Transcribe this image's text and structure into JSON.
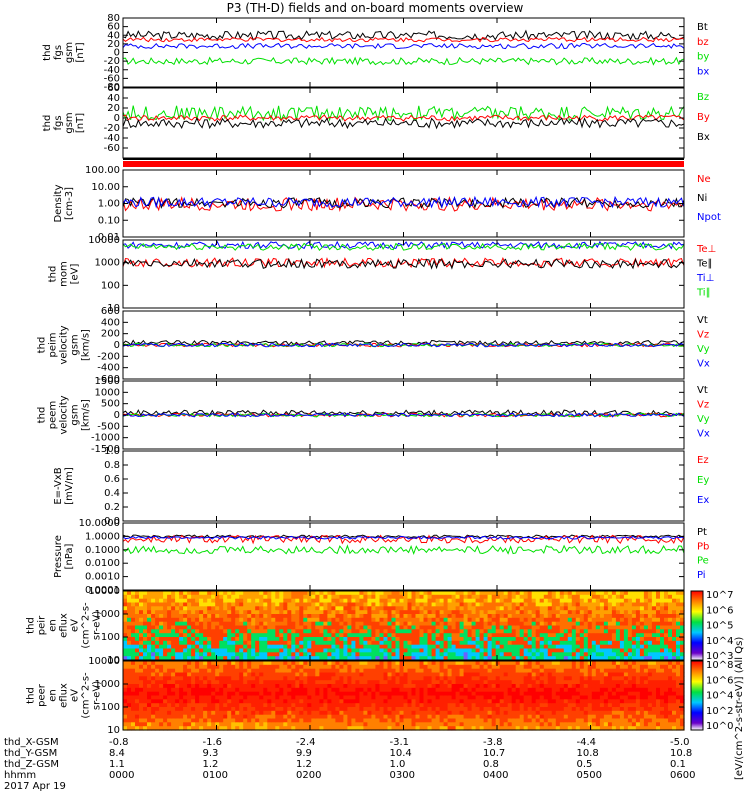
{
  "title": "P3 (TH-D) fields and on-board moments overview",
  "ephemeris": {
    "rows": [
      {
        "label": "thd_X-GSM",
        "values": [
          "-0.8",
          "-1.6",
          "-2.4",
          "-3.1",
          "-3.8",
          "-4.4",
          "-5.0"
        ]
      },
      {
        "label": "thd_Y-GSM",
        "values": [
          "8.4",
          "9.3",
          "9.9",
          "10.4",
          "10.7",
          "10.8",
          "10.8"
        ]
      },
      {
        "label": "thd_Z-GSM",
        "values": [
          "1.1",
          "1.2",
          "1.2",
          "1.0",
          "0.8",
          "0.5",
          "0.1"
        ]
      },
      {
        "label": "hhmm",
        "values": [
          "0000",
          "0100",
          "0200",
          "0300",
          "0400",
          "0500",
          "0600"
        ]
      }
    ],
    "date": "2017 Apr 19"
  },
  "colors": {
    "black": "#000000",
    "red": "#ff0000",
    "green": "#00e000",
    "blue": "#0000ff"
  },
  "chart_data": [
    {
      "type": "line",
      "id": "fgs_gsm",
      "ylabel": [
        "thd",
        "fgs",
        "gsm",
        "[nT]"
      ],
      "ylim": [
        -80,
        80
      ],
      "yticks": [
        -80,
        -60,
        -40,
        -20,
        0,
        20,
        40,
        60,
        80
      ],
      "series": [
        {
          "name": "Bt",
          "color": "#000000",
          "level": 40,
          "noise": 10
        },
        {
          "name": "bz",
          "color": "#ff0000",
          "level": 30,
          "noise": 5
        },
        {
          "name": "by",
          "color": "#00e000",
          "level": -20,
          "noise": 8
        },
        {
          "name": "bx",
          "color": "#0000ff",
          "level": 15,
          "noise": 6
        }
      ]
    },
    {
      "type": "line",
      "id": "fgs_gsm_2",
      "ylabel": [
        "thd",
        "fgs",
        "gsm",
        "[nT]"
      ],
      "ylim": [
        -80,
        60
      ],
      "yticks": [
        -60,
        -40,
        -20,
        0,
        20,
        40,
        60
      ],
      "series": [
        {
          "name": "Bz",
          "color": "#00e000",
          "level": 10,
          "noise": 15
        },
        {
          "name": "By",
          "color": "#ff0000",
          "level": 0,
          "noise": 6
        },
        {
          "name": "Bx",
          "color": "#000000",
          "level": -10,
          "noise": 10
        }
      ]
    },
    {
      "type": "line",
      "id": "density",
      "log": true,
      "ylabel": [
        "Density",
        "[cm-3]"
      ],
      "ylim": [
        0.01,
        100
      ],
      "yticks": [
        0.01,
        0.1,
        1,
        10,
        100
      ],
      "yticklabels": [
        "0.01",
        "0.10",
        "1.00",
        "10.00",
        "100.00"
      ],
      "series": [
        {
          "name": "Ne",
          "color": "#ff0000",
          "level": 0.9,
          "noise": 0.4
        },
        {
          "name": "Ni",
          "color": "#000000",
          "level": 1.1,
          "noise": 0.3
        },
        {
          "name": "Npot",
          "color": "#0000ff",
          "level": 1.2,
          "noise": 0.3
        }
      ]
    },
    {
      "type": "line",
      "id": "mom",
      "log": true,
      "ylabel": [
        "thd",
        "mom",
        "[eV]"
      ],
      "ylim": [
        10,
        10000
      ],
      "yticks": [
        10,
        100,
        1000,
        10000
      ],
      "yticklabels": [
        "10",
        "100",
        "1000",
        "10000"
      ],
      "series": [
        {
          "name": "Te⊥",
          "color": "#ff0000",
          "level": 1000,
          "noise": 0.2
        },
        {
          "name": "Te∥",
          "color": "#000000",
          "level": 900,
          "noise": 0.2
        },
        {
          "name": "Ti⊥",
          "color": "#0000ff",
          "level": 6000,
          "noise": 0.15
        },
        {
          "name": "Ti∥",
          "color": "#00e000",
          "level": 5000,
          "noise": 0.15
        }
      ]
    },
    {
      "type": "line",
      "id": "peim",
      "ylabel": [
        "thd",
        "peim",
        "velocity",
        "gsm",
        "[km/s]"
      ],
      "ylim": [
        -600,
        600
      ],
      "yticks": [
        -600,
        -400,
        -200,
        0,
        200,
        400,
        600
      ],
      "series": [
        {
          "name": "Vt",
          "color": "#000000",
          "level": 40,
          "noise": 40
        },
        {
          "name": "Vz",
          "color": "#ff0000",
          "level": 0,
          "noise": 30
        },
        {
          "name": "Vy",
          "color": "#00e000",
          "level": 0,
          "noise": 30
        },
        {
          "name": "Vx",
          "color": "#0000ff",
          "level": 0,
          "noise": 30
        }
      ]
    },
    {
      "type": "line",
      "id": "peem",
      "ylabel": [
        "thd",
        "peem",
        "velocity",
        "gsm",
        "[km/s]"
      ],
      "ylim": [
        -1500,
        1500
      ],
      "yticks": [
        -1500,
        -1000,
        -500,
        0,
        500,
        1000,
        1500
      ],
      "series": [
        {
          "name": "Vt",
          "color": "#000000",
          "level": 100,
          "noise": 120
        },
        {
          "name": "Vz",
          "color": "#ff0000",
          "level": 0,
          "noise": 80
        },
        {
          "name": "Vy",
          "color": "#00e000",
          "level": 0,
          "noise": 80
        },
        {
          "name": "Vx",
          "color": "#0000ff",
          "level": 0,
          "noise": 80
        }
      ]
    },
    {
      "type": "line",
      "id": "exb",
      "ylabel": [
        "E=-VxB",
        "[mV/m]"
      ],
      "ylim": [
        0,
        1
      ],
      "yticks": [
        0,
        0.2,
        0.4,
        0.6,
        0.8,
        1.0
      ],
      "yticklabels": [
        "0.0",
        "0.2",
        "0.4",
        "0.6",
        "0.8",
        "1.0"
      ],
      "series": [
        {
          "name": "Ez",
          "color": "#ff0000"
        },
        {
          "name": "Ey",
          "color": "#00e000"
        },
        {
          "name": "Ex",
          "color": "#0000ff"
        }
      ]
    },
    {
      "type": "line",
      "id": "pressure",
      "log": true,
      "ylabel": [
        "Pressure",
        "[nPa]"
      ],
      "ylim": [
        0.0001,
        10
      ],
      "yticks": [
        0.0001,
        0.001,
        0.01,
        0.1,
        1,
        10
      ],
      "yticklabels": [
        "0.0001",
        "0.0010",
        "0.0100",
        "0.1000",
        "1.0000",
        "10.0000"
      ],
      "series": [
        {
          "name": "Pt",
          "color": "#000000",
          "level": 1,
          "noise": 0.1
        },
        {
          "name": "Pb",
          "color": "#ff0000",
          "level": 0.6,
          "noise": 0.3
        },
        {
          "name": "Pe",
          "color": "#00e000",
          "level": 0.1,
          "noise": 0.3
        },
        {
          "name": "Pi",
          "color": "#0000ff",
          "level": 0.8,
          "noise": 0.1
        }
      ]
    },
    {
      "type": "heatmap",
      "id": "peir",
      "log": true,
      "ylabel": [
        "thd",
        "peir",
        "en",
        "eflux",
        "eV",
        "(cm^2-s-",
        "sr-eV)"
      ],
      "ylim": [
        10,
        10000
      ],
      "yticks": [
        10,
        100,
        1000,
        10000
      ],
      "yticklabels": [
        "10",
        "100",
        "1000",
        "10000"
      ],
      "colorbar": {
        "labels": [
          "10^3",
          "10^4",
          "10^5",
          "10^6",
          "10^7"
        ]
      }
    },
    {
      "type": "heatmap",
      "id": "peer",
      "log": true,
      "ylabel": [
        "thd",
        "peer",
        "en",
        "eflux",
        "eV",
        "(cm^2-s-",
        "sr-eV)"
      ],
      "ylim": [
        10,
        10000
      ],
      "yticks": [
        10,
        100,
        1000,
        10000
      ],
      "yticklabels": [
        "10",
        "100",
        "1000",
        "10000"
      ],
      "colorbar": {
        "labels": [
          "10^0",
          "10^2",
          "10^4",
          "10^6",
          "10^8"
        ]
      }
    }
  ],
  "colorbar_label": "[eV/(cm^2-s-str-eV)] (All Qs)"
}
